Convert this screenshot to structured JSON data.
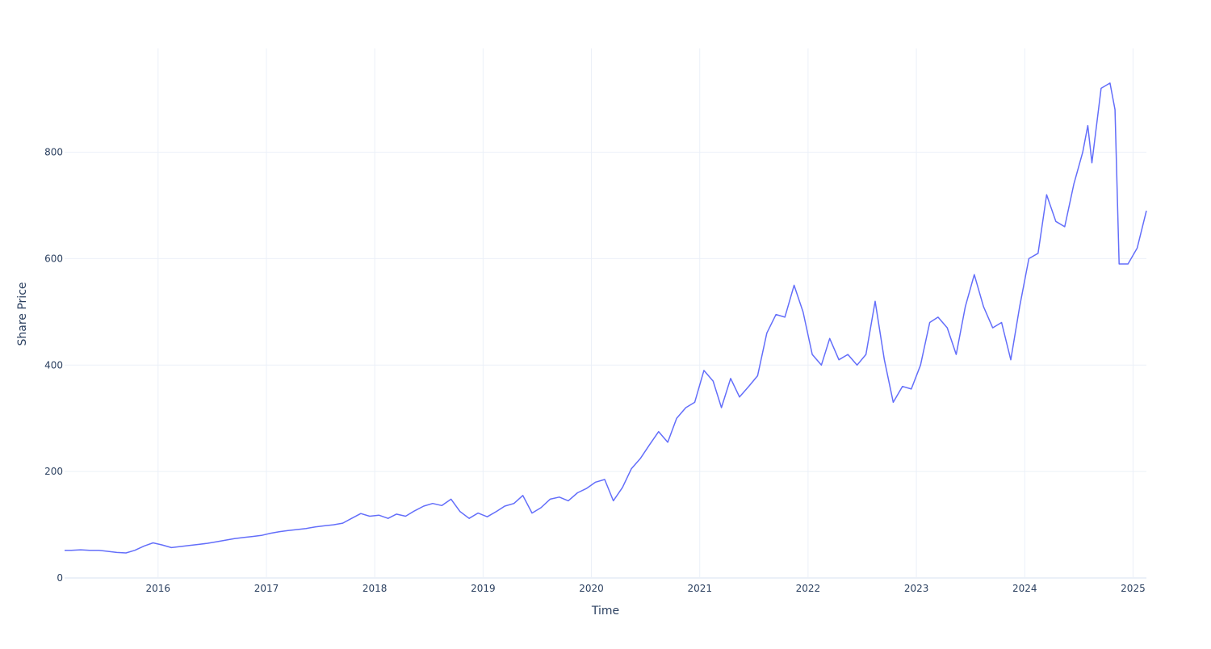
{
  "chart_data": {
    "type": "line",
    "title": "",
    "xlabel": "Time",
    "ylabel": "Share Price",
    "xlim": [
      "2015-02-20",
      "2025-02-15"
    ],
    "ylim": [
      0,
      995
    ],
    "grid": true,
    "color": "#636efa",
    "x_ticks": [
      "2016",
      "2017",
      "2018",
      "2019",
      "2020",
      "2021",
      "2022",
      "2023",
      "2024",
      "2025"
    ],
    "y_ticks": [
      "0",
      "200",
      "400",
      "600",
      "800"
    ],
    "x": [
      "2015-02-20",
      "2015-03-15",
      "2015-04-15",
      "2015-05-15",
      "2015-06-15",
      "2015-07-15",
      "2015-08-15",
      "2015-09-15",
      "2015-10-15",
      "2015-11-15",
      "2015-12-15",
      "2016-01-15",
      "2016-02-15",
      "2016-03-15",
      "2016-04-15",
      "2016-05-15",
      "2016-06-15",
      "2016-07-15",
      "2016-08-15",
      "2016-09-15",
      "2016-10-15",
      "2016-11-15",
      "2016-12-15",
      "2017-01-15",
      "2017-02-15",
      "2017-03-15",
      "2017-04-15",
      "2017-05-15",
      "2017-06-15",
      "2017-07-15",
      "2017-08-15",
      "2017-09-15",
      "2017-10-15",
      "2017-11-15",
      "2017-12-15",
      "2018-01-15",
      "2018-02-15",
      "2018-03-15",
      "2018-04-15",
      "2018-05-15",
      "2018-06-15",
      "2018-07-15",
      "2018-08-15",
      "2018-09-15",
      "2018-10-15",
      "2018-11-15",
      "2018-12-15",
      "2019-01-15",
      "2019-02-15",
      "2019-03-15",
      "2019-04-15",
      "2019-05-15",
      "2019-06-15",
      "2019-07-15",
      "2019-08-15",
      "2019-09-15",
      "2019-10-15",
      "2019-11-15",
      "2019-12-15",
      "2020-01-15",
      "2020-02-15",
      "2020-03-15",
      "2020-04-15",
      "2020-05-15",
      "2020-06-15",
      "2020-07-15",
      "2020-08-15",
      "2020-09-15",
      "2020-10-15",
      "2020-11-15",
      "2020-12-15",
      "2021-01-15",
      "2021-02-15",
      "2021-03-15",
      "2021-04-15",
      "2021-05-15",
      "2021-06-15",
      "2021-07-15",
      "2021-08-15",
      "2021-09-15",
      "2021-10-15",
      "2021-11-15",
      "2021-12-15",
      "2022-01-15",
      "2022-02-15",
      "2022-03-15",
      "2022-04-15",
      "2022-05-15",
      "2022-06-15",
      "2022-07-15",
      "2022-08-15",
      "2022-09-15",
      "2022-10-15",
      "2022-11-15",
      "2022-12-15",
      "2023-01-15",
      "2023-02-15",
      "2023-03-15",
      "2023-04-15",
      "2023-05-15",
      "2023-06-15",
      "2023-07-15",
      "2023-08-15",
      "2023-09-15",
      "2023-10-15",
      "2023-11-15",
      "2023-12-15",
      "2024-01-15",
      "2024-02-15",
      "2024-03-15",
      "2024-04-15",
      "2024-05-15",
      "2024-06-15",
      "2024-07-15",
      "2024-08-01",
      "2024-08-15",
      "2024-09-15",
      "2024-10-15",
      "2024-11-01",
      "2024-11-15",
      "2024-12-15",
      "2025-01-15",
      "2025-02-15"
    ],
    "y": [
      52,
      52,
      53,
      52,
      52,
      50,
      48,
      47,
      52,
      60,
      66,
      62,
      57,
      59,
      61,
      63,
      65,
      68,
      71,
      74,
      76,
      78,
      80,
      84,
      87,
      89,
      91,
      93,
      96,
      98,
      100,
      103,
      112,
      121,
      116,
      118,
      112,
      120,
      116,
      126,
      135,
      140,
      136,
      148,
      125,
      112,
      122,
      115,
      125,
      135,
      140,
      155,
      122,
      132,
      148,
      152,
      145,
      160,
      168,
      180,
      185,
      145,
      170,
      205,
      225,
      250,
      275,
      255,
      300,
      320,
      330,
      390,
      370,
      320,
      375,
      340,
      360,
      380,
      460,
      495,
      490,
      550,
      500,
      420,
      400,
      450,
      410,
      420,
      400,
      420,
      520,
      410,
      330,
      360,
      355,
      400,
      480,
      490,
      470,
      420,
      510,
      570,
      510,
      470,
      480,
      410,
      510,
      600,
      610,
      720,
      670,
      660,
      740,
      800,
      850,
      780,
      920,
      930,
      880,
      590,
      590,
      620,
      690
    ]
  }
}
